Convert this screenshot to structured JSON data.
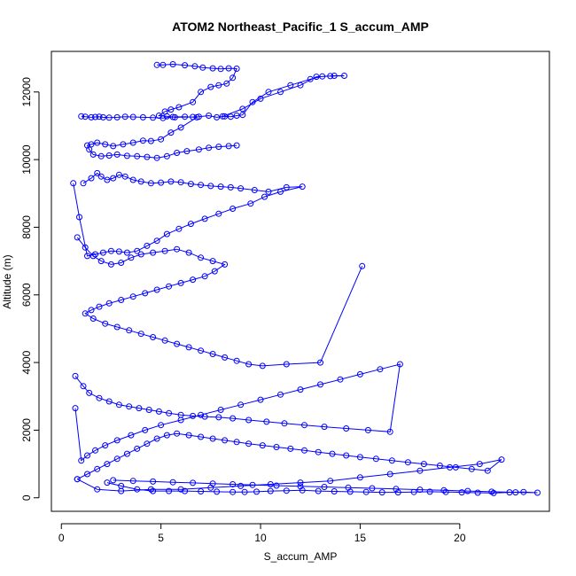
{
  "chart_data": {
    "type": "line",
    "title": "ATOM2 Northeast_Pacific_1 S_accum_AMP",
    "xlabel": "S_accum_AMP",
    "ylabel": "Altitude (m)",
    "xlim": [
      -0.5,
      24.5
    ],
    "ylim": [
      -400,
      13200
    ],
    "xticks": [
      0,
      5,
      10,
      15,
      20
    ],
    "yticks": [
      0,
      2000,
      4000,
      6000,
      8000,
      10000,
      12000
    ],
    "grid": false,
    "legend": "none",
    "marker": "open-circle",
    "series_color": "#0000ff",
    "series": [
      {
        "x": [
          4.8,
          5.1,
          5.6,
          6.2,
          6.7,
          7.1,
          7.6,
          8.0,
          8.4,
          8.8,
          8.6,
          8.3,
          7.9,
          7.5,
          7.0,
          6.6,
          5.9,
          5.5,
          5.2,
          4.9,
          5.3,
          5.7,
          6.6,
          6.9,
          7.4,
          7.8,
          8.2,
          8.5,
          8.8,
          9.1,
          9.6,
          10.4,
          11.5,
          12.5,
          13.1,
          13.7,
          14.2,
          13.5,
          12.8,
          12.0,
          11.0,
          10.0,
          9.1,
          8.1
        ],
        "y": [
          12800,
          12800,
          12820,
          12790,
          12760,
          12720,
          12700,
          12680,
          12700,
          12690,
          12420,
          12250,
          12200,
          12150,
          12000,
          11700,
          11550,
          11480,
          11420,
          11300,
          11280,
          11250,
          11260,
          11270,
          11300,
          11250,
          11280,
          11270,
          11300,
          11320,
          11700,
          12000,
          12200,
          12380,
          12460,
          12480,
          12480,
          12470,
          12450,
          12200,
          12000,
          11800,
          11500,
          11280
        ]
      },
      {
        "x": [
          1.0,
          1.2,
          1.5,
          1.7,
          1.9,
          2.1,
          2.4,
          2.8,
          3.2,
          3.6,
          4.1,
          4.6,
          5.1,
          5.6,
          6.2,
          6.8,
          6.0,
          5.5,
          5.0,
          4.5,
          4.1,
          3.6,
          3.1,
          2.6,
          2.2,
          1.8,
          1.5,
          1.3,
          1.4,
          1.6,
          2.0,
          2.4,
          2.8,
          3.3,
          3.8,
          4.3,
          4.8,
          5.3,
          5.8,
          6.3,
          6.9,
          7.4,
          7.9,
          8.4,
          8.8
        ],
        "y": [
          11280,
          11270,
          11250,
          11260,
          11270,
          11250,
          11240,
          11250,
          11270,
          11260,
          11250,
          11240,
          11230,
          11260,
          11270,
          11250,
          10950,
          10800,
          10600,
          10550,
          10560,
          10500,
          10450,
          10400,
          10450,
          10500,
          10450,
          10420,
          10300,
          10150,
          10100,
          10120,
          10150,
          10110,
          10100,
          10080,
          10050,
          10100,
          10200,
          10250,
          10300,
          10350,
          10380,
          10400,
          10420
        ]
      },
      {
        "x": [
          1.1,
          1.5,
          1.8,
          2.0,
          2.3,
          2.6,
          2.9,
          3.2,
          3.6,
          4.0,
          4.5,
          5.0,
          5.5,
          6.0,
          6.5,
          7.0,
          7.5,
          8.0,
          8.5,
          9.0,
          9.7,
          10.4,
          11.3,
          12.1,
          11.0,
          10.2,
          9.5,
          8.6,
          7.9,
          7.2,
          6.5,
          5.9,
          5.3,
          4.8,
          4.3,
          3.8,
          3.3,
          2.9,
          2.5,
          2.1,
          1.7,
          1.3,
          0.9,
          0.6
        ],
        "y": [
          9300,
          9450,
          9600,
          9500,
          9400,
          9450,
          9550,
          9500,
          9400,
          9350,
          9300,
          9320,
          9350,
          9330,
          9280,
          9250,
          9220,
          9200,
          9180,
          9150,
          9100,
          9050,
          9180,
          9200,
          9050,
          8900,
          8700,
          8550,
          8400,
          8250,
          8100,
          7950,
          7800,
          7600,
          7450,
          7300,
          7250,
          7280,
          7300,
          7250,
          7200,
          7150,
          8300,
          9300
        ]
      },
      {
        "x": [
          0.8,
          1.2,
          1.6,
          2.0,
          2.5,
          3.0,
          3.5,
          4.0,
          4.6,
          5.2,
          5.8,
          6.4,
          7.0,
          7.6,
          8.2,
          7.7,
          7.2,
          6.6,
          6.0,
          5.4,
          4.8,
          4.2,
          3.6,
          3.0,
          2.4,
          1.9,
          1.5,
          1.2,
          1.6,
          2.2,
          2.8,
          3.4,
          4.0,
          4.6,
          5.2,
          5.8,
          6.4,
          7.0,
          7.6,
          8.2,
          8.8,
          9.4,
          10.1,
          11.3,
          13.0,
          15.1
        ],
        "y": [
          7700,
          7400,
          7150,
          7000,
          6900,
          6950,
          7100,
          7200,
          7250,
          7300,
          7350,
          7250,
          7100,
          7000,
          6900,
          6700,
          6550,
          6450,
          6350,
          6250,
          6150,
          6050,
          5950,
          5850,
          5750,
          5650,
          5550,
          5450,
          5300,
          5150,
          5050,
          4950,
          4850,
          4750,
          4650,
          4550,
          4450,
          4350,
          4250,
          4150,
          4050,
          3950,
          3900,
          3950,
          4000,
          6850
        ]
      },
      {
        "x": [
          0.7,
          1.1,
          1.4,
          1.9,
          2.4,
          2.9,
          3.4,
          3.9,
          4.4,
          4.9,
          5.4,
          6.0,
          6.6,
          7.2,
          7.9,
          8.6,
          9.4,
          10.3,
          11.2,
          12.2,
          13.2,
          14.3,
          15.4,
          16.5,
          17.0,
          16.0,
          15.0,
          14.0,
          13.0,
          12.0,
          11.0,
          10.0,
          9.0,
          8.0,
          7.0,
          6.0,
          5.0,
          4.2,
          3.5,
          2.8,
          2.2,
          1.7,
          1.3,
          1.0,
          0.7
        ],
        "y": [
          3600,
          3300,
          3100,
          2950,
          2850,
          2750,
          2700,
          2650,
          2600,
          2550,
          2500,
          2450,
          2420,
          2400,
          2380,
          2350,
          2300,
          2250,
          2200,
          2150,
          2100,
          2050,
          2000,
          1950,
          3950,
          3800,
          3650,
          3500,
          3350,
          3200,
          3050,
          2900,
          2750,
          2600,
          2450,
          2300,
          2150,
          2000,
          1850,
          1700,
          1550,
          1400,
          1250,
          1100,
          2650
        ]
      },
      {
        "x": [
          0.8,
          1.3,
          1.8,
          2.3,
          2.8,
          3.3,
          3.8,
          4.3,
          4.8,
          5.3,
          5.8,
          6.4,
          7.0,
          7.6,
          8.2,
          8.8,
          9.4,
          10.1,
          10.8,
          11.5,
          12.2,
          12.9,
          13.6,
          14.3,
          15.0,
          15.8,
          16.6,
          17.4,
          18.2,
          19.0,
          19.8,
          20.6,
          21.4,
          22.1,
          21.0,
          19.5,
          18.0,
          16.5,
          15.0,
          13.5,
          12.0,
          10.5,
          9.0,
          7.5,
          6.0,
          4.5,
          3.0,
          1.8,
          0.8
        ],
        "y": [
          550,
          700,
          850,
          1000,
          1150,
          1300,
          1450,
          1600,
          1750,
          1850,
          1900,
          1850,
          1800,
          1750,
          1700,
          1650,
          1600,
          1550,
          1500,
          1450,
          1400,
          1350,
          1300,
          1250,
          1200,
          1150,
          1100,
          1050,
          1000,
          950,
          900,
          850,
          800,
          1130,
          1000,
          900,
          800,
          700,
          600,
          500,
          450,
          400,
          350,
          300,
          250,
          250,
          200,
          250,
          550
        ]
      },
      {
        "x": [
          2.3,
          3.0,
          3.8,
          4.6,
          5.4,
          6.2,
          7.0,
          7.8,
          8.6,
          9.2,
          9.8,
          10.5,
          11.3,
          12.1,
          12.9,
          13.7,
          14.5,
          15.3,
          16.1,
          16.9,
          17.7,
          18.5,
          19.3,
          20.1,
          20.9,
          21.7,
          22.5,
          23.2,
          23.9,
          22.8,
          21.6,
          20.4,
          19.2,
          18.0,
          16.8,
          15.6,
          14.4,
          13.2,
          12.0,
          10.8,
          9.6,
          8.6,
          7.6,
          6.6,
          5.6,
          4.6,
          3.6,
          2.6
        ],
        "y": [
          450,
          350,
          250,
          200,
          200,
          200,
          190,
          180,
          170,
          170,
          180,
          200,
          210,
          220,
          200,
          190,
          180,
          170,
          160,
          160,
          170,
          180,
          170,
          160,
          150,
          140,
          160,
          170,
          150,
          160,
          180,
          200,
          220,
          240,
          260,
          280,
          300,
          320,
          340,
          360,
          380,
          400,
          420,
          440,
          460,
          480,
          500,
          520
        ]
      }
    ]
  }
}
